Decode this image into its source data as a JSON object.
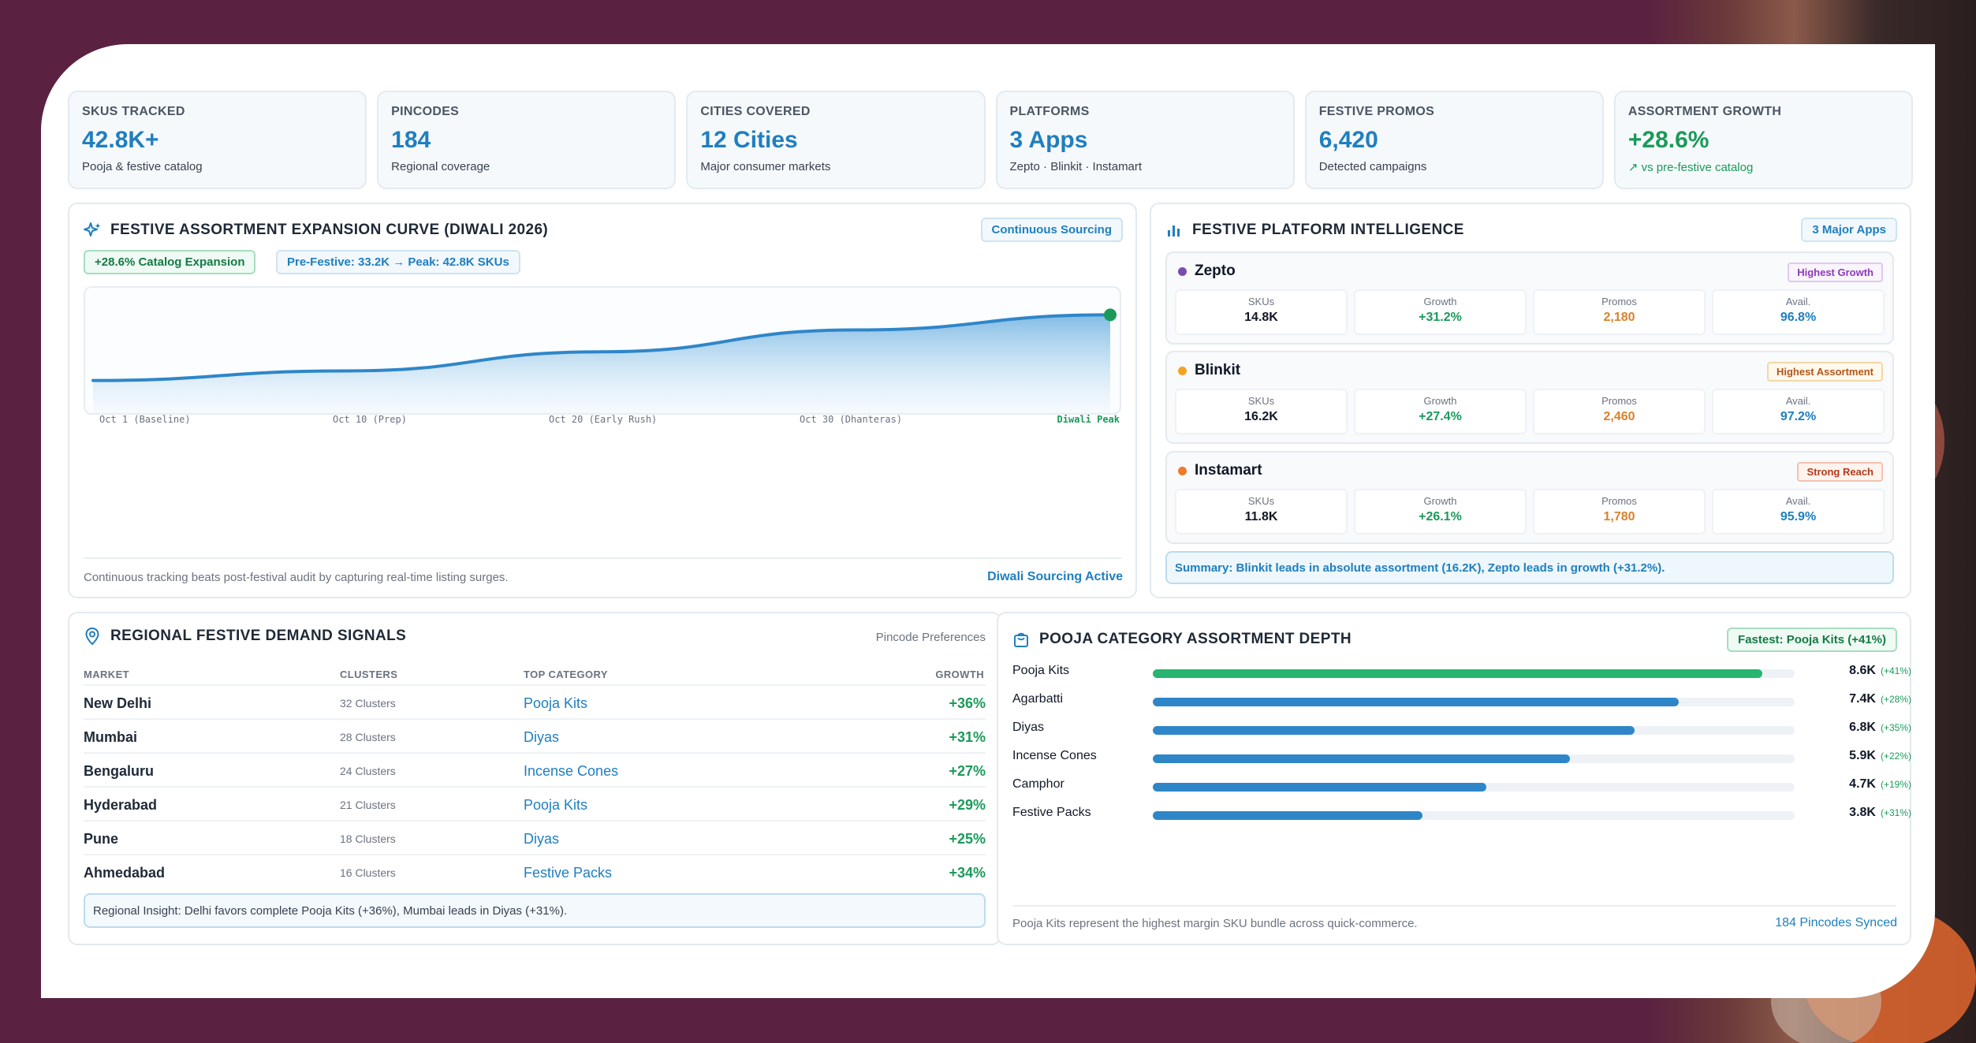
{
  "kpis": [
    {
      "label": "SKUS TRACKED",
      "value": "42.8K+",
      "sub": "Pooja & festive catalog"
    },
    {
      "label": "PINCODES",
      "value": "184",
      "sub": "Regional coverage"
    },
    {
      "label": "CITIES COVERED",
      "value": "12 Cities",
      "sub": "Major consumer markets"
    },
    {
      "label": "PLATFORMS",
      "value": "3 Apps",
      "sub": "Zepto · Blinkit · Instamart"
    },
    {
      "label": "FESTIVE PROMOS",
      "value": "6,420",
      "sub": "Detected campaigns"
    },
    {
      "label": "ASSORTMENT GROWTH",
      "value": "+28.6%",
      "sub": "↗ vs pre-festive catalog"
    }
  ],
  "curve": {
    "title": "FESTIVE ASSORTMENT EXPANSION CURVE (DIWALI 2026)",
    "tag": "Continuous Sourcing",
    "chip_growth": "+28.6% Catalog Expansion",
    "chip_range": "Pre-Festive: 33.2K → Peak: 42.8K SKUs",
    "footer_note": "Continuous tracking beats post-festival audit by capturing real-time listing surges.",
    "footer_link": "Diwali Sourcing Active"
  },
  "chart_data": {
    "type": "area",
    "x": [
      "Oct 1 (Baseline)",
      "Oct 10 (Prep)",
      "Oct 20 (Early Rush)",
      "Oct 30 (Dhanteras)",
      "Diwali Peak"
    ],
    "values": [
      33.2,
      34.6,
      37.4,
      40.6,
      42.8
    ],
    "unit": "K SKUs",
    "grid": false
  },
  "platforms": {
    "title": "FESTIVE PLATFORM INTELLIGENCE",
    "tag": "3 Major Apps",
    "stat_labels": [
      "SKUs",
      "Growth",
      "Promos",
      "Avail."
    ],
    "items": [
      {
        "name": "Zepto",
        "badge": "Highest Growth",
        "dot": "#7b4bb0",
        "skus": "14.8K",
        "growth": "+31.2%",
        "promos": "2,180",
        "avail": "96.8%"
      },
      {
        "name": "Blinkit",
        "badge": "Highest Assortment",
        "dot": "#f2a324",
        "skus": "16.2K",
        "growth": "+27.4%",
        "promos": "2,460",
        "avail": "97.2%"
      },
      {
        "name": "Instamart",
        "badge": "Strong Reach",
        "dot": "#f07a2a",
        "skus": "11.8K",
        "growth": "+26.1%",
        "promos": "1,780",
        "avail": "95.9%"
      }
    ],
    "summary": "Summary: Blinkit leads in absolute assortment (16.2K), Zepto leads in growth (+31.2%)."
  },
  "regional": {
    "title": "REGIONAL FESTIVE DEMAND SIGNALS",
    "tag": "Pincode Preferences",
    "headers": [
      "MARKET",
      "CLUSTERS",
      "TOP CATEGORY",
      "GROWTH"
    ],
    "rows": [
      {
        "market": "New Delhi",
        "clusters": "32 Clusters",
        "category": "Pooja Kits",
        "growth": "+36%"
      },
      {
        "market": "Mumbai",
        "clusters": "28 Clusters",
        "category": "Diyas",
        "growth": "+31%"
      },
      {
        "market": "Bengaluru",
        "clusters": "24 Clusters",
        "category": "Incense Cones",
        "growth": "+27%"
      },
      {
        "market": "Hyderabad",
        "clusters": "21 Clusters",
        "category": "Pooja Kits",
        "growth": "+29%"
      },
      {
        "market": "Pune",
        "clusters": "18 Clusters",
        "category": "Diyas",
        "growth": "+25%"
      },
      {
        "market": "Ahmedabad",
        "clusters": "16 Clusters",
        "category": "Festive Packs",
        "growth": "+34%"
      }
    ],
    "insight": "Regional Insight: Delhi favors complete Pooja Kits (+36%), Mumbai leads in Diyas (+31%)."
  },
  "depth": {
    "title": "POOJA CATEGORY ASSORTMENT DEPTH",
    "tag": "Fastest: Pooja Kits (+41%)",
    "items": [
      {
        "label": "Pooja Kits",
        "value": "8.6K",
        "delta": "(+41%)",
        "fill": 0.95,
        "highlight": true
      },
      {
        "label": "Agarbatti",
        "value": "7.4K",
        "delta": "(+28%)",
        "fill": 0.82,
        "highlight": false
      },
      {
        "label": "Diyas",
        "value": "6.8K",
        "delta": "(+35%)",
        "fill": 0.75,
        "highlight": false
      },
      {
        "label": "Incense Cones",
        "value": "5.9K",
        "delta": "(+22%)",
        "fill": 0.65,
        "highlight": false
      },
      {
        "label": "Camphor",
        "value": "4.7K",
        "delta": "(+19%)",
        "fill": 0.52,
        "highlight": false
      },
      {
        "label": "Festive Packs",
        "value": "3.8K",
        "delta": "(+31%)",
        "fill": 0.42,
        "highlight": false
      }
    ],
    "footer_note": "Pooja Kits represent the highest margin SKU bundle across quick-commerce.",
    "footer_link": "184 Pincodes Synced"
  }
}
